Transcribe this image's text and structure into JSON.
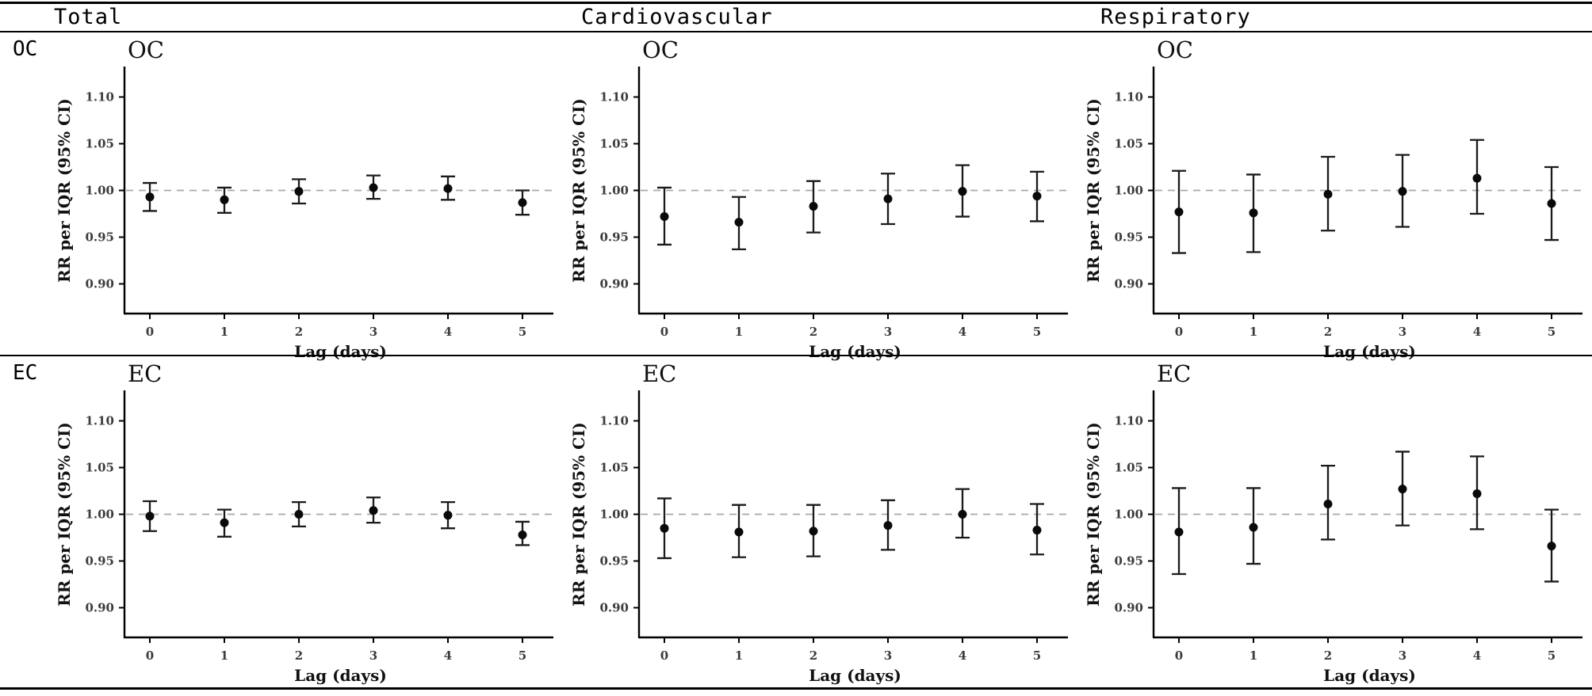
{
  "headers": {
    "columns": [
      "Total",
      "Cardiovascular",
      "Respiratory"
    ],
    "rows": [
      "OC",
      "EC"
    ]
  },
  "palette": {
    "axis": "#000000",
    "point": "#0a0a0a",
    "error_bar": "#1a1a1a",
    "ref_line": "#a8a8a8",
    "tick_text": "#3c3c3c"
  },
  "chart_data": [
    {
      "type": "scatter",
      "row": "OC",
      "column": "Total",
      "title": "OC",
      "xlabel": "Lag (days)",
      "ylabel": "RR per IQR (95% CI)",
      "xticks": [
        "0",
        "1",
        "2",
        "3",
        "4",
        "5"
      ],
      "yticks": [
        1.1,
        1.05,
        1.0,
        0.95,
        0.9
      ],
      "ytick_labels": [
        "1.10",
        "1.05",
        "1.00",
        "0.95",
        "0.90"
      ],
      "ref_line": 1.0,
      "ylim": [
        0.868,
        1.133
      ],
      "x": [
        0,
        1,
        2,
        3,
        4,
        5
      ],
      "values": [
        0.993,
        0.99,
        0.999,
        1.003,
        1.002,
        0.987
      ],
      "ci_low": [
        0.978,
        0.976,
        0.986,
        0.991,
        0.99,
        0.974
      ],
      "ci_high": [
        1.008,
        1.003,
        1.012,
        1.016,
        1.015,
        1.0
      ]
    },
    {
      "type": "scatter",
      "row": "OC",
      "column": "Cardiovascular",
      "title": "OC",
      "xlabel": "Lag (days)",
      "ylabel": "RR per IQR (95% CI)",
      "xticks": [
        "0",
        "1",
        "2",
        "3",
        "4",
        "5"
      ],
      "yticks": [
        1.1,
        1.05,
        1.0,
        0.95,
        0.9
      ],
      "ytick_labels": [
        "1.10",
        "1.05",
        "1.00",
        "0.95",
        "0.90"
      ],
      "ref_line": 1.0,
      "ylim": [
        0.868,
        1.133
      ],
      "x": [
        0,
        1,
        2,
        3,
        4,
        5
      ],
      "values": [
        0.972,
        0.966,
        0.983,
        0.991,
        0.999,
        0.994
      ],
      "ci_low": [
        0.942,
        0.937,
        0.955,
        0.964,
        0.972,
        0.967
      ],
      "ci_high": [
        1.003,
        0.993,
        1.01,
        1.018,
        1.027,
        1.02
      ]
    },
    {
      "type": "scatter",
      "row": "OC",
      "column": "Respiratory",
      "title": "OC",
      "xlabel": "Lag (days)",
      "ylabel": "RR per IQR (95% CI)",
      "xticks": [
        "0",
        "1",
        "2",
        "3",
        "4",
        "5"
      ],
      "yticks": [
        1.1,
        1.05,
        1.0,
        0.95,
        0.9
      ],
      "ytick_labels": [
        "1.10",
        "1.05",
        "1.00",
        "0.95",
        "0.90"
      ],
      "ref_line": 1.0,
      "ylim": [
        0.868,
        1.133
      ],
      "x": [
        0,
        1,
        2,
        3,
        4,
        5
      ],
      "values": [
        0.977,
        0.976,
        0.996,
        0.999,
        1.013,
        0.986
      ],
      "ci_low": [
        0.933,
        0.934,
        0.957,
        0.961,
        0.975,
        0.947
      ],
      "ci_high": [
        1.021,
        1.017,
        1.036,
        1.038,
        1.054,
        1.025
      ]
    },
    {
      "type": "scatter",
      "row": "EC",
      "column": "Total",
      "title": "EC",
      "xlabel": "Lag (days)",
      "ylabel": "RR per IQR (95% CI)",
      "xticks": [
        "0",
        "1",
        "2",
        "3",
        "4",
        "5"
      ],
      "yticks": [
        1.1,
        1.05,
        1.0,
        0.95,
        0.9
      ],
      "ytick_labels": [
        "1.10",
        "1.05",
        "1.00",
        "0.95",
        "0.90"
      ],
      "ref_line": 1.0,
      "ylim": [
        0.868,
        1.133
      ],
      "x": [
        0,
        1,
        2,
        3,
        4,
        5
      ],
      "values": [
        0.998,
        0.991,
        1.0,
        1.004,
        0.999,
        0.978
      ],
      "ci_low": [
        0.982,
        0.976,
        0.987,
        0.991,
        0.985,
        0.967
      ],
      "ci_high": [
        1.014,
        1.005,
        1.013,
        1.018,
        1.013,
        0.992
      ]
    },
    {
      "type": "scatter",
      "row": "EC",
      "column": "Cardiovascular",
      "title": "EC",
      "xlabel": "Lag (days)",
      "ylabel": "RR per IQR (95% CI)",
      "xticks": [
        "0",
        "1",
        "2",
        "3",
        "4",
        "5"
      ],
      "yticks": [
        1.1,
        1.05,
        1.0,
        0.95,
        0.9
      ],
      "ytick_labels": [
        "1.10",
        "1.05",
        "1.00",
        "0.95",
        "0.90"
      ],
      "ref_line": 1.0,
      "ylim": [
        0.868,
        1.133
      ],
      "x": [
        0,
        1,
        2,
        3,
        4,
        5
      ],
      "values": [
        0.985,
        0.981,
        0.982,
        0.988,
        1.0,
        0.983
      ],
      "ci_low": [
        0.953,
        0.954,
        0.955,
        0.962,
        0.975,
        0.957
      ],
      "ci_high": [
        1.017,
        1.01,
        1.01,
        1.015,
        1.027,
        1.011
      ]
    },
    {
      "type": "scatter",
      "row": "EC",
      "column": "Respiratory",
      "title": "EC",
      "xlabel": "Lag (days)",
      "ylabel": "RR per IQR (95% CI)",
      "xticks": [
        "0",
        "1",
        "2",
        "3",
        "4",
        "5"
      ],
      "yticks": [
        1.1,
        1.05,
        1.0,
        0.95,
        0.9
      ],
      "ytick_labels": [
        "1.10",
        "1.05",
        "1.00",
        "0.95",
        "0.90"
      ],
      "ref_line": 1.0,
      "ylim": [
        0.868,
        1.133
      ],
      "x": [
        0,
        1,
        2,
        3,
        4,
        5
      ],
      "values": [
        0.981,
        0.986,
        1.011,
        1.027,
        1.022,
        0.966
      ],
      "ci_low": [
        0.936,
        0.947,
        0.973,
        0.988,
        0.984,
        0.928
      ],
      "ci_high": [
        1.028,
        1.028,
        1.052,
        1.067,
        1.062,
        1.005
      ]
    }
  ]
}
